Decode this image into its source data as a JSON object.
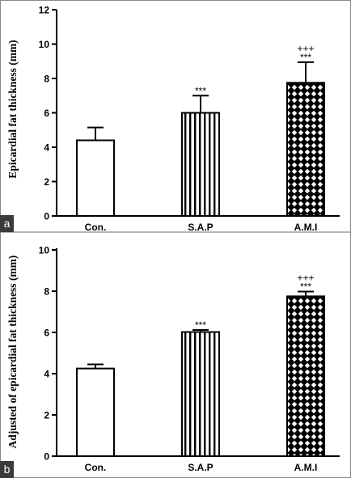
{
  "chart_data": [
    {
      "type": "bar",
      "panel_label": "a",
      "ylabel": "Epicardial fat thickness (mm)",
      "xlabel": "",
      "categories": [
        "Con.",
        "S.A.P",
        "A.M.I"
      ],
      "values": [
        4.4,
        6.0,
        7.75
      ],
      "error_upper": [
        5.15,
        7.0,
        8.95
      ],
      "annotations": [
        [],
        [
          "***"
        ],
        [
          "+++",
          "***"
        ]
      ],
      "patterns": [
        "none",
        "vertical-lines",
        "crosshatch"
      ],
      "ylim": [
        0,
        12
      ],
      "yticks": [
        0,
        2,
        4,
        6,
        8,
        10,
        12
      ],
      "ytick_labels": [
        "0",
        "2",
        "4",
        "6",
        "8",
        "10",
        "12"
      ],
      "grid": false,
      "legend": "none"
    },
    {
      "type": "bar",
      "panel_label": "b",
      "ylabel": "Adjusted of epicardial fat thickness (mm)",
      "xlabel": "",
      "categories": [
        "Con.",
        "S.A.P",
        "A.M.I"
      ],
      "values": [
        4.25,
        6.02,
        7.75
      ],
      "error_upper": [
        4.45,
        6.12,
        7.98
      ],
      "annotations": [
        [],
        [
          "***"
        ],
        [
          "+++",
          "***"
        ]
      ],
      "patterns": [
        "none",
        "vertical-lines",
        "crosshatch"
      ],
      "ylim": [
        0,
        10
      ],
      "yticks": [
        0,
        2,
        4,
        6,
        8,
        10
      ],
      "ytick_labels": [
        "0",
        "2",
        "4",
        "6",
        "8",
        "10"
      ],
      "grid": false,
      "legend": "none"
    }
  ],
  "colors": {
    "bar_fill": "#ffffff",
    "bar_stroke": "#000000",
    "label_bg": "#3b3b3b",
    "label_fg": "#ffffff"
  }
}
